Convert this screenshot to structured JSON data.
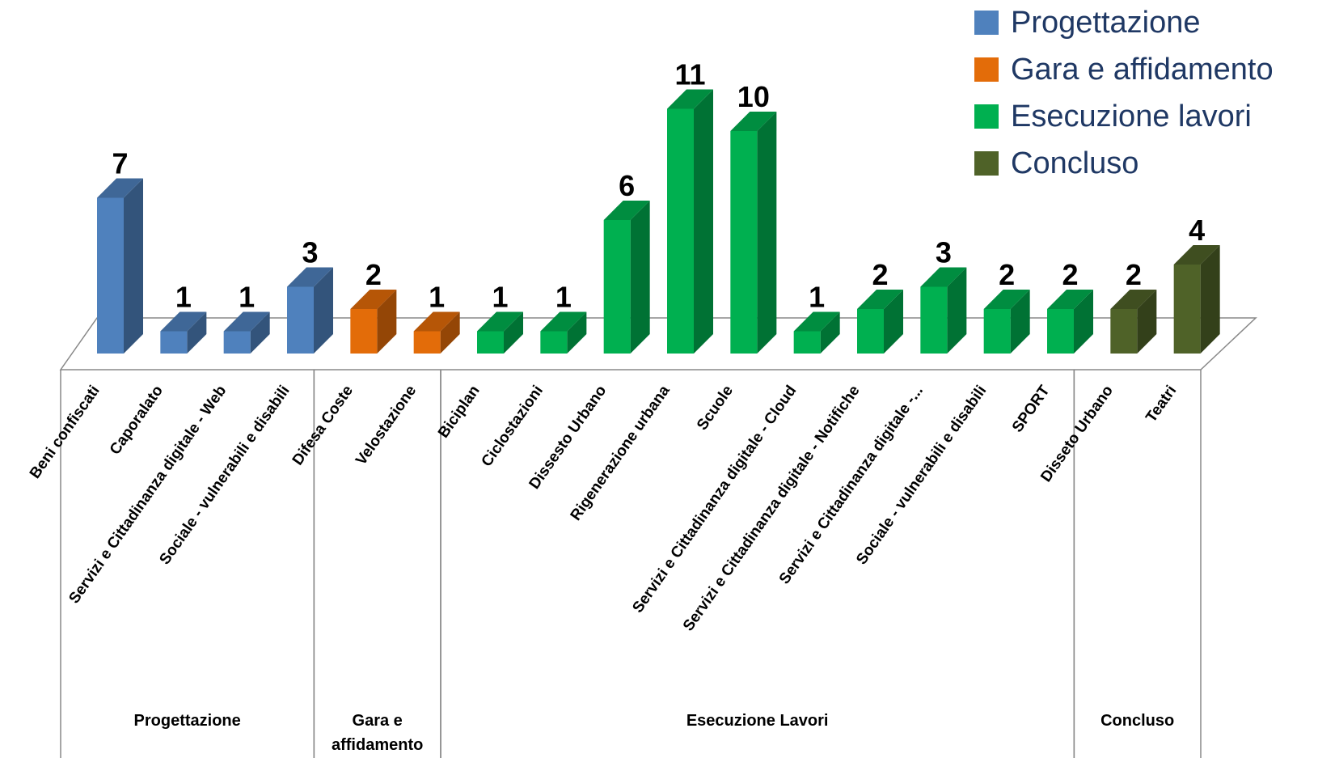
{
  "chart_data": {
    "type": "bar3d",
    "categories": [
      "Beni confiscati",
      "Caporalato",
      "Servizi e Cittadinanza digitale - Web",
      "Sociale - vulnerabili e disabili",
      "Difesa Coste",
      "Velostazione",
      "Biciplan",
      "Ciclostazioni",
      "Dissesto Urbano",
      "Rigenerazione urbana",
      "Scuole",
      "Servizi e Cittadinanza digitale - Cloud",
      "Servizi e Cittadinanza digitale - Notifiche",
      "Servizi e Cittadinanza digitale -...",
      "Sociale - vulnerabili e disabili",
      "SPORT",
      "Disseto Urbano",
      "Teatri"
    ],
    "series": [
      {
        "name": "Progettazione",
        "color": "#4f81bd",
        "values": [
          7,
          1,
          1,
          3,
          null,
          null,
          null,
          null,
          null,
          null,
          null,
          null,
          null,
          null,
          null,
          null,
          null,
          null
        ]
      },
      {
        "name": "Gara e affidamento",
        "color": "#e36c09",
        "values": [
          null,
          null,
          null,
          null,
          2,
          1,
          null,
          null,
          null,
          null,
          null,
          null,
          null,
          null,
          null,
          null,
          null,
          null
        ]
      },
      {
        "name": "Esecuzione lavori",
        "color": "#00b050",
        "values": [
          null,
          null,
          null,
          null,
          null,
          null,
          1,
          1,
          6,
          11,
          10,
          1,
          2,
          3,
          2,
          2,
          null,
          null
        ]
      },
      {
        "name": "Concluso",
        "color": "#4f6228",
        "values": [
          null,
          null,
          null,
          null,
          null,
          null,
          null,
          null,
          null,
          null,
          null,
          null,
          null,
          null,
          null,
          null,
          2,
          4
        ]
      }
    ],
    "group_labels": [
      "Progettazione",
      "Gara e affidamento",
      "Esecuzione Lavori",
      "Concluso"
    ],
    "legend": "top-right"
  }
}
